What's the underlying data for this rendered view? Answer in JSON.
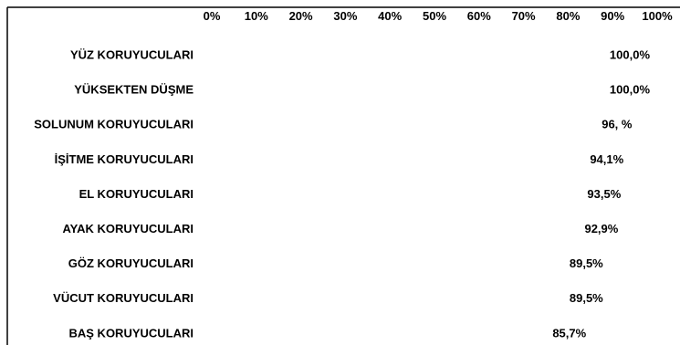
{
  "chart_data": {
    "type": "bar",
    "orientation": "horizontal",
    "title": "",
    "xlabel": "",
    "ylabel": "",
    "xlim": [
      0,
      100
    ],
    "x_ticks": [
      "0%",
      "10%",
      "20%",
      "30%",
      "40%",
      "50%",
      "60%",
      "70%",
      "80%",
      "90%",
      "100%"
    ],
    "x_axis_position": "top",
    "grid": false,
    "legend": "none",
    "categories": [
      "YÜZ KORUYUCULARI",
      "YÜKSEKTEN DÜŞME",
      "SOLUNUM KORUYUCULARI",
      "İŞİTME KORUYUCULARI",
      "EL KORUYUCULARI",
      "AYAK KORUYUCULARI",
      "GÖZ KORUYUCULARI",
      "VÜCUT KORUYUCULARI",
      "BAŞ KORUYUCULARI"
    ],
    "values": [
      100.0,
      100.0,
      96.0,
      94.1,
      93.5,
      92.9,
      89.5,
      89.5,
      85.7
    ],
    "data_labels": [
      "100,0%",
      "100,0%",
      "96, %",
      "94,1%",
      "93,5%",
      "92,9%",
      "89,5%",
      "89,5%",
      "85,7%"
    ],
    "bar_color": "#ffffff",
    "text_color": "#000000",
    "axis_color": "#000000"
  }
}
